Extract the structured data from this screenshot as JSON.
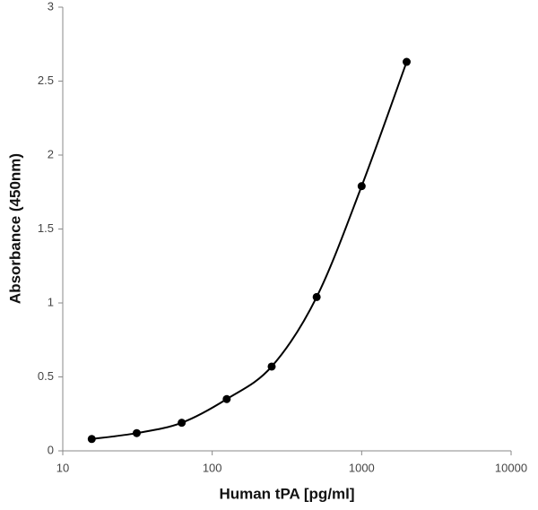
{
  "chart_data": {
    "type": "scatter",
    "x_label": "Human tPA [pg/ml]",
    "y_label": "Absorbance (450nm)",
    "x": [
      15.625,
      31.25,
      62.5,
      125,
      250,
      500,
      1000,
      2000
    ],
    "values": [
      0.08,
      0.12,
      0.19,
      0.35,
      0.57,
      1.04,
      1.79,
      2.63
    ],
    "color": "#000000",
    "smooth_line": true,
    "xscale": "log",
    "xlim": [
      10,
      10000
    ],
    "xticks": [
      10,
      100,
      1000,
      10000
    ],
    "ylim": [
      0,
      3
    ],
    "yticks": [
      0,
      0.5,
      1,
      1.5,
      2,
      2.5,
      3
    ]
  }
}
